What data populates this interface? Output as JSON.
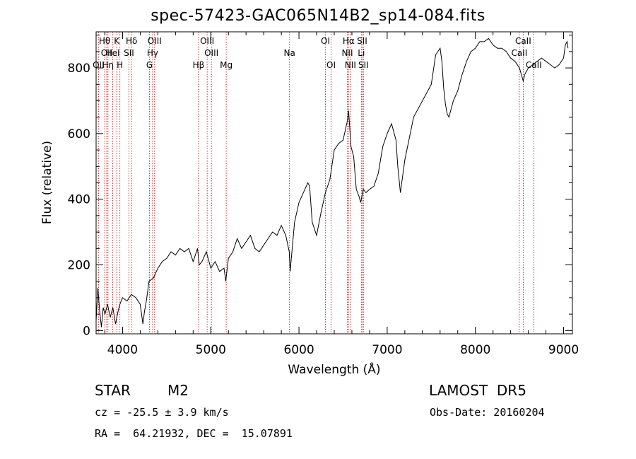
{
  "chart_data": {
    "type": "line",
    "title": "spec-57423-GAC065N14B2_sp14-084.fits",
    "xlabel": "Wavelength (Å)",
    "ylabel": "Flux (relative)",
    "xlim": [
      3700,
      9100
    ],
    "ylim": [
      -10,
      910
    ],
    "xticks": [
      4000,
      5000,
      6000,
      7000,
      8000,
      9000
    ],
    "yticks": [
      0,
      200,
      400,
      600,
      800
    ],
    "line_color": "#000000",
    "marker_color": "#cc0000",
    "series": [
      {
        "x": [
          3700,
          3720,
          3740,
          3760,
          3780,
          3800,
          3830,
          3860,
          3890,
          3920,
          3950,
          3970,
          4000,
          4050,
          4100,
          4150,
          4200,
          4230,
          4250,
          4270,
          4300,
          4350,
          4400,
          4450,
          4500,
          4550,
          4600,
          4650,
          4700,
          4750,
          4800,
          4850,
          4870,
          4900,
          4950,
          5000,
          5050,
          5100,
          5150,
          5170,
          5200,
          5250,
          5300,
          5350,
          5400,
          5450,
          5500,
          5550,
          5600,
          5650,
          5700,
          5750,
          5800,
          5850,
          5890,
          5900,
          5950,
          6000,
          6050,
          6100,
          6120,
          6150,
          6200,
          6250,
          6300,
          6350,
          6400,
          6450,
          6500,
          6550,
          6563,
          6590,
          6620,
          6650,
          6680,
          6700,
          6730,
          6760,
          6800,
          6850,
          6900,
          6950,
          7000,
          7050,
          7100,
          7120,
          7150,
          7200,
          7300,
          7400,
          7500,
          7550,
          7600,
          7620,
          7640,
          7660,
          7680,
          7700,
          7750,
          7800,
          7850,
          7900,
          7950,
          8000,
          8050,
          8100,
          8150,
          8200,
          8250,
          8300,
          8350,
          8400,
          8450,
          8500,
          8542,
          8560,
          8600,
          8650,
          8700,
          8750,
          8800,
          8850,
          8900,
          8950,
          9000,
          9020,
          9040,
          9050
        ],
        "y": [
          30,
          130,
          60,
          10,
          70,
          50,
          80,
          40,
          70,
          20,
          60,
          80,
          100,
          90,
          110,
          100,
          80,
          20,
          60,
          90,
          150,
          160,
          190,
          210,
          220,
          240,
          230,
          250,
          240,
          250,
          210,
          250,
          200,
          210,
          240,
          190,
          210,
          180,
          190,
          150,
          220,
          240,
          280,
          250,
          270,
          290,
          250,
          240,
          260,
          280,
          300,
          290,
          320,
          290,
          240,
          180,
          330,
          390,
          420,
          450,
          440,
          330,
          290,
          360,
          420,
          460,
          550,
          570,
          580,
          640,
          670,
          560,
          530,
          430,
          410,
          390,
          430,
          420,
          430,
          440,
          480,
          560,
          600,
          630,
          580,
          500,
          420,
          520,
          650,
          700,
          750,
          840,
          860,
          820,
          740,
          690,
          660,
          650,
          700,
          730,
          780,
          820,
          850,
          860,
          880,
          880,
          890,
          870,
          860,
          860,
          850,
          830,
          820,
          800,
          760,
          780,
          800,
          810,
          820,
          830,
          820,
          810,
          800,
          810,
          830,
          870,
          880,
          860
        ]
      }
    ],
    "lines": [
      {
        "wl": 3797,
        "label": "Hθ",
        "row": 1
      },
      {
        "wl": 3820,
        "label": "OII",
        "row": 2
      },
      {
        "wl": 3727,
        "label": "OII",
        "row": 3
      },
      {
        "wl": 3835,
        "label": "Hη",
        "row": 3
      },
      {
        "wl": 3889,
        "label": "HeI",
        "row": 2
      },
      {
        "wl": 3934,
        "label": "K",
        "row": 1
      },
      {
        "wl": 3970,
        "label": "H",
        "row": 3
      },
      {
        "wl": 4072,
        "label": "SII",
        "row": 2
      },
      {
        "wl": 4102,
        "label": "Hδ",
        "row": 1
      },
      {
        "wl": 4340,
        "label": "Hγ",
        "row": 2
      },
      {
        "wl": 4305,
        "label": "G",
        "row": 3
      },
      {
        "wl": 4363,
        "label": "OIII",
        "row": 1
      },
      {
        "wl": 4861,
        "label": "Hβ",
        "row": 3
      },
      {
        "wl": 4959,
        "label": "OIII",
        "row": 1
      },
      {
        "wl": 5007,
        "label": "OIII",
        "row": 2
      },
      {
        "wl": 5175,
        "label": "Mg",
        "row": 3
      },
      {
        "wl": 5893,
        "label": "Na",
        "row": 2
      },
      {
        "wl": 6300,
        "label": "OI",
        "row": 1
      },
      {
        "wl": 6364,
        "label": "OI",
        "row": 3
      },
      {
        "wl": 6548,
        "label": "NII",
        "row": 2
      },
      {
        "wl": 6563,
        "label": "Hα",
        "row": 1
      },
      {
        "wl": 6583,
        "label": "NII",
        "row": 3
      },
      {
        "wl": 6707,
        "label": "Li",
        "row": 2
      },
      {
        "wl": 6716,
        "label": "SII",
        "row": 1
      },
      {
        "wl": 6731,
        "label": "SII",
        "row": 3
      },
      {
        "wl": 8498,
        "label": "CaII",
        "row": 2
      },
      {
        "wl": 8542,
        "label": "CaII",
        "row": 1
      },
      {
        "wl": 8662,
        "label": "CaII",
        "row": 3
      }
    ]
  },
  "info": {
    "class": "STAR",
    "subclass": "M2",
    "survey": "LAMOST  DR5",
    "cz": "cz = -25.5 ± 3.9 km/s",
    "obs_date": "Obs-Date: 20160204",
    "radec": "RA =  64.21932, DEC =  15.07891"
  }
}
